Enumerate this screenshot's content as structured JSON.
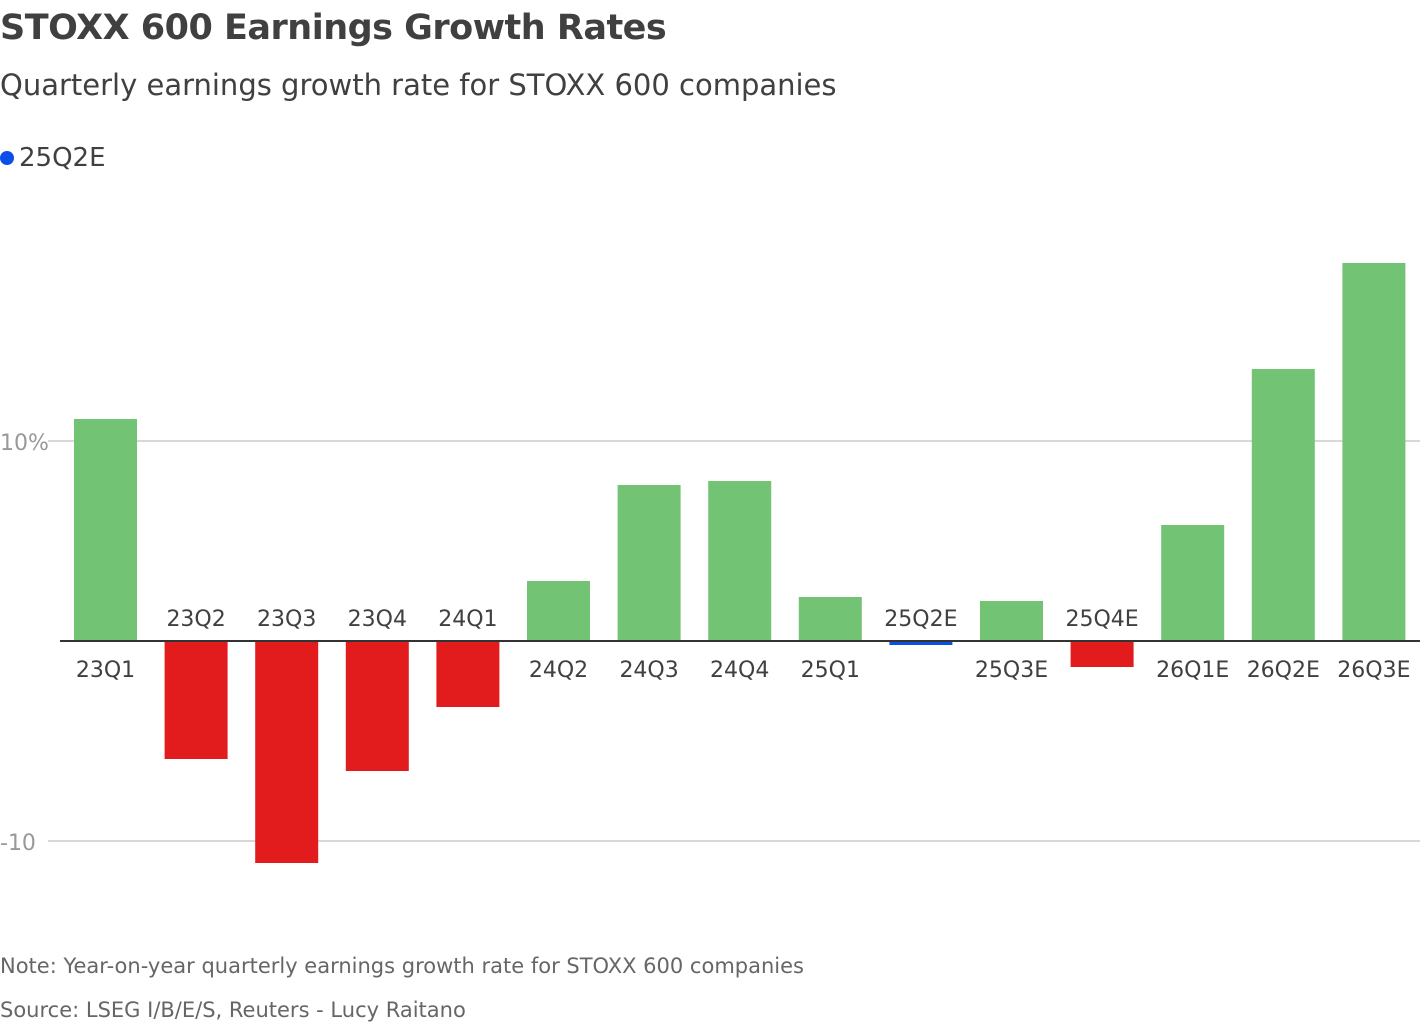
{
  "chart_data": {
    "type": "bar",
    "title": "STOXX 600 Earnings Growth Rates",
    "subtitle": "Quarterly earnings growth rate for STOXX 600 companies",
    "legend": [
      {
        "label": "25Q2E",
        "color": "#0a50e6"
      }
    ],
    "categories": [
      "23Q1",
      "23Q2",
      "23Q3",
      "23Q4",
      "24Q1",
      "24Q2",
      "24Q3",
      "24Q4",
      "25Q1",
      "25Q2E",
      "25Q3E",
      "25Q4E",
      "26Q1E",
      "26Q2E",
      "26Q3E"
    ],
    "values": [
      11.1,
      -5.9,
      -11.1,
      -6.5,
      -3.3,
      3.0,
      7.8,
      8.0,
      2.2,
      -0.2,
      2.0,
      -1.3,
      5.8,
      13.6,
      18.9
    ],
    "highlight": "25Q2E",
    "colors": {
      "positive": "#73c374",
      "negative": "#e21b1d",
      "highlight": "#0a50e6"
    },
    "yticks": [
      {
        "value": 10,
        "label": "10%"
      },
      {
        "value": -10,
        "label": "-10"
      }
    ],
    "ylim": [
      -15,
      20
    ],
    "xlabel": "",
    "ylabel": "",
    "grid": true,
    "note": "Note: Year-on-year quarterly earnings growth rate for STOXX 600 companies",
    "source": "Source: LSEG I/B/E/S, Reuters - Lucy Raitano"
  }
}
